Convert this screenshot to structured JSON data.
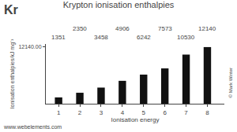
{
  "chart_data": {
    "type": "bar",
    "title": "Krypton ionisation enthalpies",
    "xlabel": "Ionisation energy",
    "ylabel": "Ionisation enthalpies/kJ mg⁻¹",
    "x": [
      1,
      2,
      3,
      4,
      5,
      6,
      7,
      8
    ],
    "values": [
      1351,
      2350,
      3458,
      4906,
      6242,
      7573,
      10530,
      12140
    ],
    "color": "#111111",
    "xlim": [
      0.4,
      8.8
    ],
    "xticks": [
      1,
      2,
      3,
      4,
      5,
      6,
      7,
      8
    ],
    "ylim": [
      0,
      12800
    ],
    "yticks": [
      {
        "value": 12140,
        "label": "12140.00"
      }
    ],
    "data_labels": true,
    "grid": false,
    "annotations": [
      "Kr",
      "www.webelements.com",
      "© Mark Winter"
    ]
  }
}
